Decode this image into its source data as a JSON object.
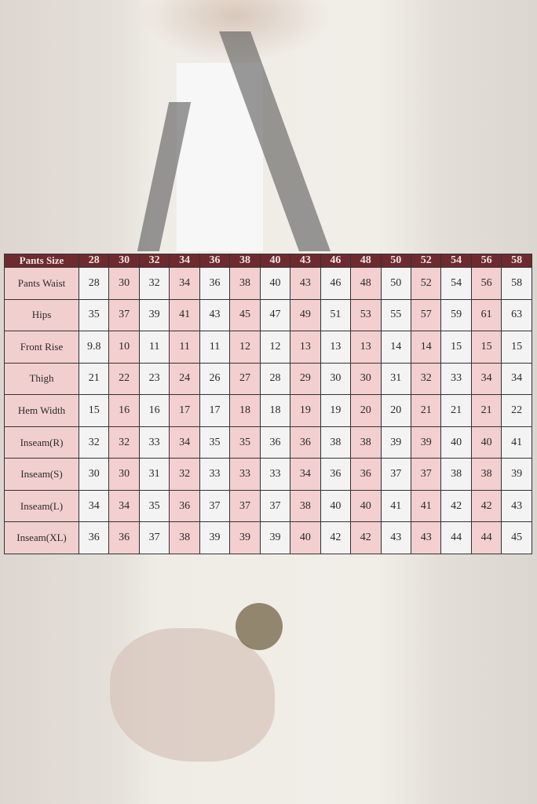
{
  "colors": {
    "header": "#6e2a2e",
    "pink": "#f3cfcf",
    "white": "#f3f3f3"
  },
  "table": {
    "header_label": "Pants Size",
    "sizes": [
      "28",
      "30",
      "32",
      "34",
      "36",
      "38",
      "40",
      "43",
      "46",
      "48",
      "50",
      "52",
      "54",
      "56",
      "58"
    ],
    "rows": [
      {
        "label": "Pants Waist",
        "values": [
          "28",
          "30",
          "32",
          "34",
          "36",
          "38",
          "40",
          "43",
          "46",
          "48",
          "50",
          "52",
          "54",
          "56",
          "58"
        ]
      },
      {
        "label": "Hips",
        "values": [
          "35",
          "37",
          "39",
          "41",
          "43",
          "45",
          "47",
          "49",
          "51",
          "53",
          "55",
          "57",
          "59",
          "61",
          "63"
        ]
      },
      {
        "label": "Front Rise",
        "values": [
          "9.8",
          "10",
          "11",
          "11",
          "11",
          "12",
          "12",
          "13",
          "13",
          "13",
          "14",
          "14",
          "15",
          "15",
          "15"
        ]
      },
      {
        "label": "Thigh",
        "values": [
          "21",
          "22",
          "23",
          "24",
          "26",
          "27",
          "28",
          "29",
          "30",
          "30",
          "31",
          "32",
          "33",
          "34",
          "34"
        ]
      },
      {
        "label": "Hem Width",
        "values": [
          "15",
          "16",
          "16",
          "17",
          "17",
          "18",
          "18",
          "19",
          "19",
          "20",
          "20",
          "21",
          "21",
          "21",
          "22"
        ]
      },
      {
        "label": "Inseam(R)",
        "values": [
          "32",
          "32",
          "33",
          "34",
          "35",
          "35",
          "36",
          "36",
          "38",
          "38",
          "39",
          "39",
          "40",
          "40",
          "41"
        ]
      },
      {
        "label": "Inseam(S)",
        "values": [
          "30",
          "30",
          "31",
          "32",
          "33",
          "33",
          "33",
          "34",
          "36",
          "36",
          "37",
          "37",
          "38",
          "38",
          "39"
        ]
      },
      {
        "label": "Inseam(L)",
        "values": [
          "34",
          "34",
          "35",
          "36",
          "37",
          "37",
          "37",
          "38",
          "40",
          "40",
          "41",
          "41",
          "42",
          "42",
          "43"
        ]
      },
      {
        "label": "Inseam(XL)",
        "values": [
          "36",
          "36",
          "37",
          "38",
          "39",
          "39",
          "39",
          "40",
          "42",
          "42",
          "43",
          "43",
          "44",
          "44",
          "45"
        ]
      }
    ]
  }
}
